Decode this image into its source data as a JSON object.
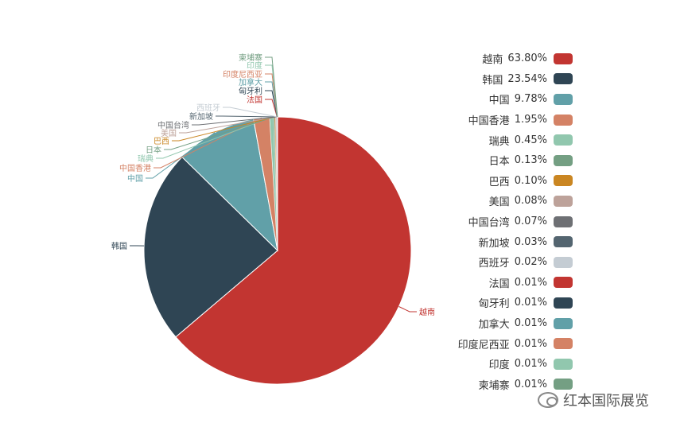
{
  "chart_data": {
    "type": "pie",
    "title": "",
    "legend_position": "right",
    "slices": [
      {
        "name": "越南",
        "value": 63.8,
        "label": "63.80%",
        "color": "#c23531"
      },
      {
        "name": "韩国",
        "value": 23.54,
        "label": "23.54%",
        "color": "#2f4554"
      },
      {
        "name": "中国",
        "value": 9.78,
        "label": "9.78%",
        "color": "#61a0a8"
      },
      {
        "name": "中国香港",
        "value": 1.95,
        "label": "1.95%",
        "color": "#d48265"
      },
      {
        "name": "瑞典",
        "value": 0.45,
        "label": "0.45%",
        "color": "#91c7ae"
      },
      {
        "name": "日本",
        "value": 0.13,
        "label": "0.13%",
        "color": "#749f83"
      },
      {
        "name": "巴西",
        "value": 0.1,
        "label": "0.10%",
        "color": "#ca8622"
      },
      {
        "name": "美国",
        "value": 0.08,
        "label": "0.08%",
        "color": "#bda29a"
      },
      {
        "name": "中国台湾",
        "value": 0.07,
        "label": "0.07%",
        "color": "#6e7074"
      },
      {
        "name": "新加坡",
        "value": 0.03,
        "label": "0.03%",
        "color": "#546570"
      },
      {
        "name": "西班牙",
        "value": 0.02,
        "label": "0.02%",
        "color": "#c4ccd3"
      },
      {
        "name": "法国",
        "value": 0.01,
        "label": "0.01%",
        "color": "#c23531"
      },
      {
        "name": "匈牙利",
        "value": 0.01,
        "label": "0.01%",
        "color": "#2f4554"
      },
      {
        "name": "加拿大",
        "value": 0.01,
        "label": "0.01%",
        "color": "#61a0a8"
      },
      {
        "name": "印度尼西亚",
        "value": 0.01,
        "label": "0.01%",
        "color": "#d48265"
      },
      {
        "name": "印度",
        "value": 0.01,
        "label": "0.01%",
        "color": "#91c7ae"
      },
      {
        "name": "柬埔寨",
        "value": 0.01,
        "label": "0.01%",
        "color": "#749f83"
      }
    ]
  },
  "watermark": {
    "text": "红本国际展览",
    "icon": "wechat-icon"
  }
}
